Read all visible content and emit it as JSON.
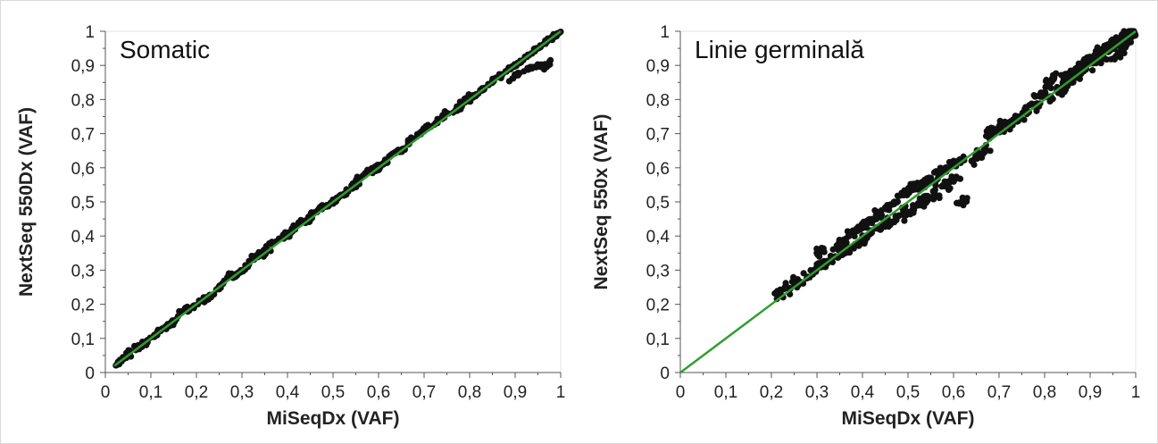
{
  "colors": {
    "points": "#111111",
    "fit_line": "#2e9e2e",
    "axis": "#555555",
    "frame": "#d9d9d9"
  },
  "chart_data": [
    {
      "type": "scatter",
      "title": "Somatic",
      "xlabel": "MiSeqDx (VAF)",
      "ylabel": "NextSeq 550Dx (VAF)",
      "xlim": [
        0,
        1
      ],
      "ylim": [
        0,
        1
      ],
      "xticks": [
        "0",
        "0,1",
        "0,2",
        "0,3",
        "0,4",
        "0,5",
        "0,6",
        "0,7",
        "0,8",
        "0,9",
        "1"
      ],
      "yticks": [
        "0",
        "0,1",
        "0,2",
        "0,3",
        "0,4",
        "0,5",
        "0,6",
        "0,7",
        "0,8",
        "0,9",
        "1"
      ],
      "grid": false,
      "fit_line": {
        "x": [
          0.02,
          1.0
        ],
        "y": [
          0.02,
          1.0
        ]
      },
      "points": [
        [
          0.03,
          0.03
        ],
        [
          0.04,
          0.04
        ],
        [
          0.05,
          0.06
        ],
        [
          0.07,
          0.07
        ],
        [
          0.09,
          0.09
        ],
        [
          0.11,
          0.11
        ],
        [
          0.13,
          0.13
        ],
        [
          0.15,
          0.15
        ],
        [
          0.17,
          0.18
        ],
        [
          0.19,
          0.19
        ],
        [
          0.21,
          0.21
        ],
        [
          0.23,
          0.22
        ],
        [
          0.25,
          0.25
        ],
        [
          0.27,
          0.28
        ],
        [
          0.29,
          0.29
        ],
        [
          0.31,
          0.31
        ],
        [
          0.33,
          0.34
        ],
        [
          0.35,
          0.35
        ],
        [
          0.37,
          0.38
        ],
        [
          0.39,
          0.4
        ],
        [
          0.41,
          0.42
        ],
        [
          0.43,
          0.44
        ],
        [
          0.45,
          0.46
        ],
        [
          0.47,
          0.48
        ],
        [
          0.49,
          0.49
        ],
        [
          0.51,
          0.51
        ],
        [
          0.53,
          0.53
        ],
        [
          0.55,
          0.56
        ],
        [
          0.57,
          0.58
        ],
        [
          0.59,
          0.6
        ],
        [
          0.61,
          0.61
        ],
        [
          0.63,
          0.64
        ],
        [
          0.65,
          0.65
        ],
        [
          0.67,
          0.68
        ],
        [
          0.69,
          0.7
        ],
        [
          0.71,
          0.72
        ],
        [
          0.73,
          0.74
        ],
        [
          0.75,
          0.76
        ],
        [
          0.77,
          0.77
        ],
        [
          0.79,
          0.8
        ],
        [
          0.81,
          0.81
        ],
        [
          0.83,
          0.83
        ],
        [
          0.85,
          0.85
        ],
        [
          0.87,
          0.87
        ],
        [
          0.89,
          0.89
        ],
        [
          0.91,
          0.91
        ],
        [
          0.93,
          0.93
        ],
        [
          0.95,
          0.95
        ],
        [
          0.97,
          0.97
        ],
        [
          0.99,
          0.99
        ],
        [
          0.9,
          0.87
        ],
        [
          0.93,
          0.89
        ],
        [
          0.95,
          0.9
        ],
        [
          0.97,
          0.9
        ],
        [
          0.35,
          0.36
        ],
        [
          0.4,
          0.4
        ],
        [
          0.45,
          0.45
        ],
        [
          0.5,
          0.5
        ],
        [
          0.55,
          0.55
        ],
        [
          0.6,
          0.6
        ]
      ]
    },
    {
      "type": "scatter",
      "title": "Linie germinală",
      "xlabel": "MiSeqDx (VAF)",
      "ylabel": "NextSeq 550x (VAF)",
      "xlim": [
        0,
        1
      ],
      "ylim": [
        0,
        1
      ],
      "xticks": [
        "0",
        "0,1",
        "0,2",
        "0,3",
        "0,4",
        "0,5",
        "0,6",
        "0,7",
        "0,8",
        "0,9",
        "1"
      ],
      "yticks": [
        "0",
        "0,1",
        "0,2",
        "0,3",
        "0,4",
        "0,5",
        "0,6",
        "0,7",
        "0,8",
        "0,9",
        "1"
      ],
      "grid": false,
      "fit_line": {
        "x": [
          0.0,
          1.0
        ],
        "y": [
          0.0,
          1.0
        ]
      },
      "points": [
        [
          0.22,
          0.23
        ],
        [
          0.23,
          0.25
        ],
        [
          0.25,
          0.26
        ],
        [
          0.28,
          0.28
        ],
        [
          0.3,
          0.31
        ],
        [
          0.32,
          0.32
        ],
        [
          0.3,
          0.35
        ],
        [
          0.34,
          0.34
        ],
        [
          0.35,
          0.38
        ],
        [
          0.36,
          0.36
        ],
        [
          0.37,
          0.4
        ],
        [
          0.38,
          0.37
        ],
        [
          0.39,
          0.42
        ],
        [
          0.4,
          0.39
        ],
        [
          0.41,
          0.44
        ],
        [
          0.42,
          0.41
        ],
        [
          0.43,
          0.46
        ],
        [
          0.44,
          0.42
        ],
        [
          0.45,
          0.48
        ],
        [
          0.46,
          0.44
        ],
        [
          0.47,
          0.5
        ],
        [
          0.48,
          0.46
        ],
        [
          0.49,
          0.52
        ],
        [
          0.5,
          0.47
        ],
        [
          0.51,
          0.54
        ],
        [
          0.52,
          0.49
        ],
        [
          0.53,
          0.55
        ],
        [
          0.54,
          0.51
        ],
        [
          0.55,
          0.57
        ],
        [
          0.56,
          0.52
        ],
        [
          0.57,
          0.59
        ],
        [
          0.58,
          0.55
        ],
        [
          0.59,
          0.6
        ],
        [
          0.6,
          0.56
        ],
        [
          0.61,
          0.62
        ],
        [
          0.62,
          0.5
        ],
        [
          0.64,
          0.62
        ],
        [
          0.66,
          0.64
        ],
        [
          0.68,
          0.7
        ],
        [
          0.7,
          0.72
        ],
        [
          0.72,
          0.72
        ],
        [
          0.74,
          0.75
        ],
        [
          0.76,
          0.77
        ],
        [
          0.78,
          0.78
        ],
        [
          0.79,
          0.81
        ],
        [
          0.81,
          0.84
        ],
        [
          0.82,
          0.86
        ],
        [
          0.83,
          0.82
        ],
        [
          0.84,
          0.83
        ],
        [
          0.85,
          0.86
        ],
        [
          0.86,
          0.85
        ],
        [
          0.87,
          0.89
        ],
        [
          0.88,
          0.88
        ],
        [
          0.89,
          0.9
        ],
        [
          0.9,
          0.91
        ],
        [
          0.91,
          0.93
        ],
        [
          0.92,
          0.92
        ],
        [
          0.93,
          0.95
        ],
        [
          0.94,
          0.94
        ],
        [
          0.95,
          0.97
        ],
        [
          0.96,
          0.96
        ],
        [
          0.97,
          0.99
        ],
        [
          0.98,
          0.98
        ],
        [
          0.99,
          1.0
        ],
        [
          0.98,
          0.96
        ],
        [
          0.96,
          0.93
        ]
      ]
    }
  ]
}
